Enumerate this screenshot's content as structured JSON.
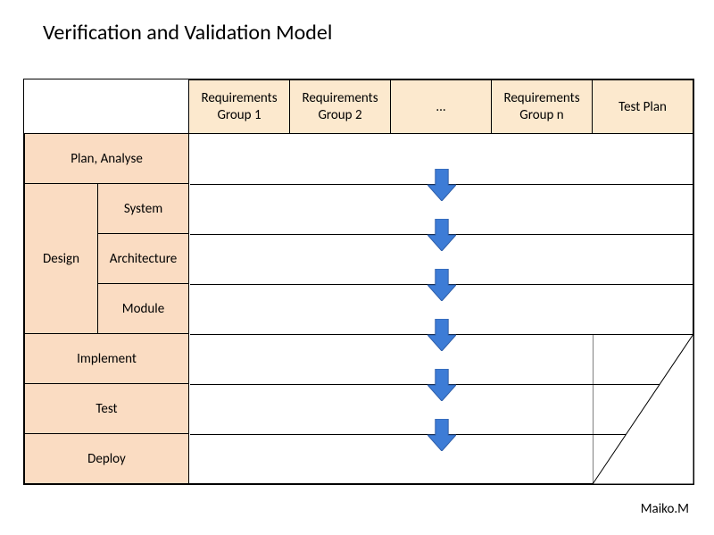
{
  "title": "Verification and Validation Model",
  "credit": "Maiko.M",
  "layout": {
    "total_width": 748,
    "row_header_h": 60,
    "row_body_h": 56,
    "col_phase1_w": 82,
    "col_phase2_w": 102,
    "col_data_w": 113,
    "n_data_cols": 5,
    "title_fontsize": 24,
    "header_fontsize": 15,
    "phase_fontsize": 15,
    "credit_fontsize": 15
  },
  "colors": {
    "header_bg": "#fce9ce",
    "phase_bg": "#fadcc2",
    "border": "#000000",
    "background": "#ffffff",
    "arrow_fill": "#3d7cd6",
    "arrow_stroke": "#2f5ea8"
  },
  "headers": {
    "c0": "Requirements Group 1",
    "c1": "Requirements Group 2",
    "c2": "...",
    "c3": "Requirements Group n",
    "c4": "Test Plan"
  },
  "phases": {
    "r0": "Plan, Analyse",
    "r1_group": "Design",
    "r1a": "System",
    "r1b": "Architecture",
    "r1c": "Module",
    "r2": "Implement",
    "r3": "Test",
    "r4": "Deploy"
  },
  "arrows": {
    "count": 6,
    "width": 32,
    "height": 36,
    "shaft_w_ratio": 0.45,
    "shaft_h_ratio": 0.5
  },
  "diagonal": {
    "rows_spanned": 3,
    "stroke_w": 1
  }
}
